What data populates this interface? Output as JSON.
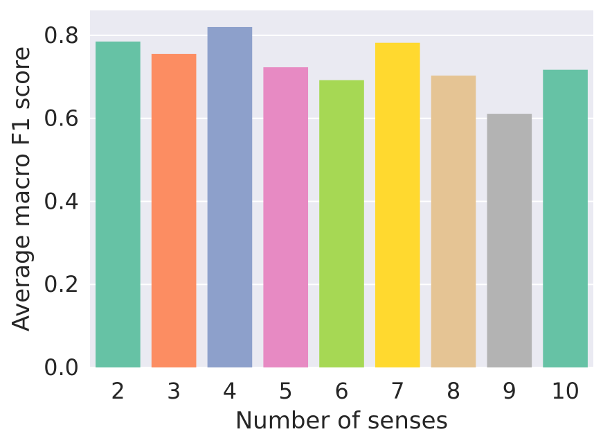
{
  "chart_data": {
    "type": "bar",
    "xlabel": "Number of senses",
    "ylabel": "Average macro F1 score",
    "categories": [
      "2",
      "3",
      "4",
      "5",
      "6",
      "7",
      "8",
      "9",
      "10"
    ],
    "values": [
      0.785,
      0.755,
      0.82,
      0.723,
      0.692,
      0.782,
      0.703,
      0.611,
      0.717
    ],
    "colors": [
      "#66c2a5",
      "#fc8d62",
      "#8da0cb",
      "#e78ac3",
      "#a6d854",
      "#ffd92f",
      "#e5c494",
      "#b3b3b3",
      "#66c2a5"
    ],
    "ylim": [
      0,
      0.86
    ],
    "yticks": [
      "0.0",
      "0.2",
      "0.4",
      "0.6",
      "0.8"
    ],
    "grid": true,
    "background": "#eaeaf2",
    "grid_color": "#ffffff",
    "text_color": "#262626"
  }
}
